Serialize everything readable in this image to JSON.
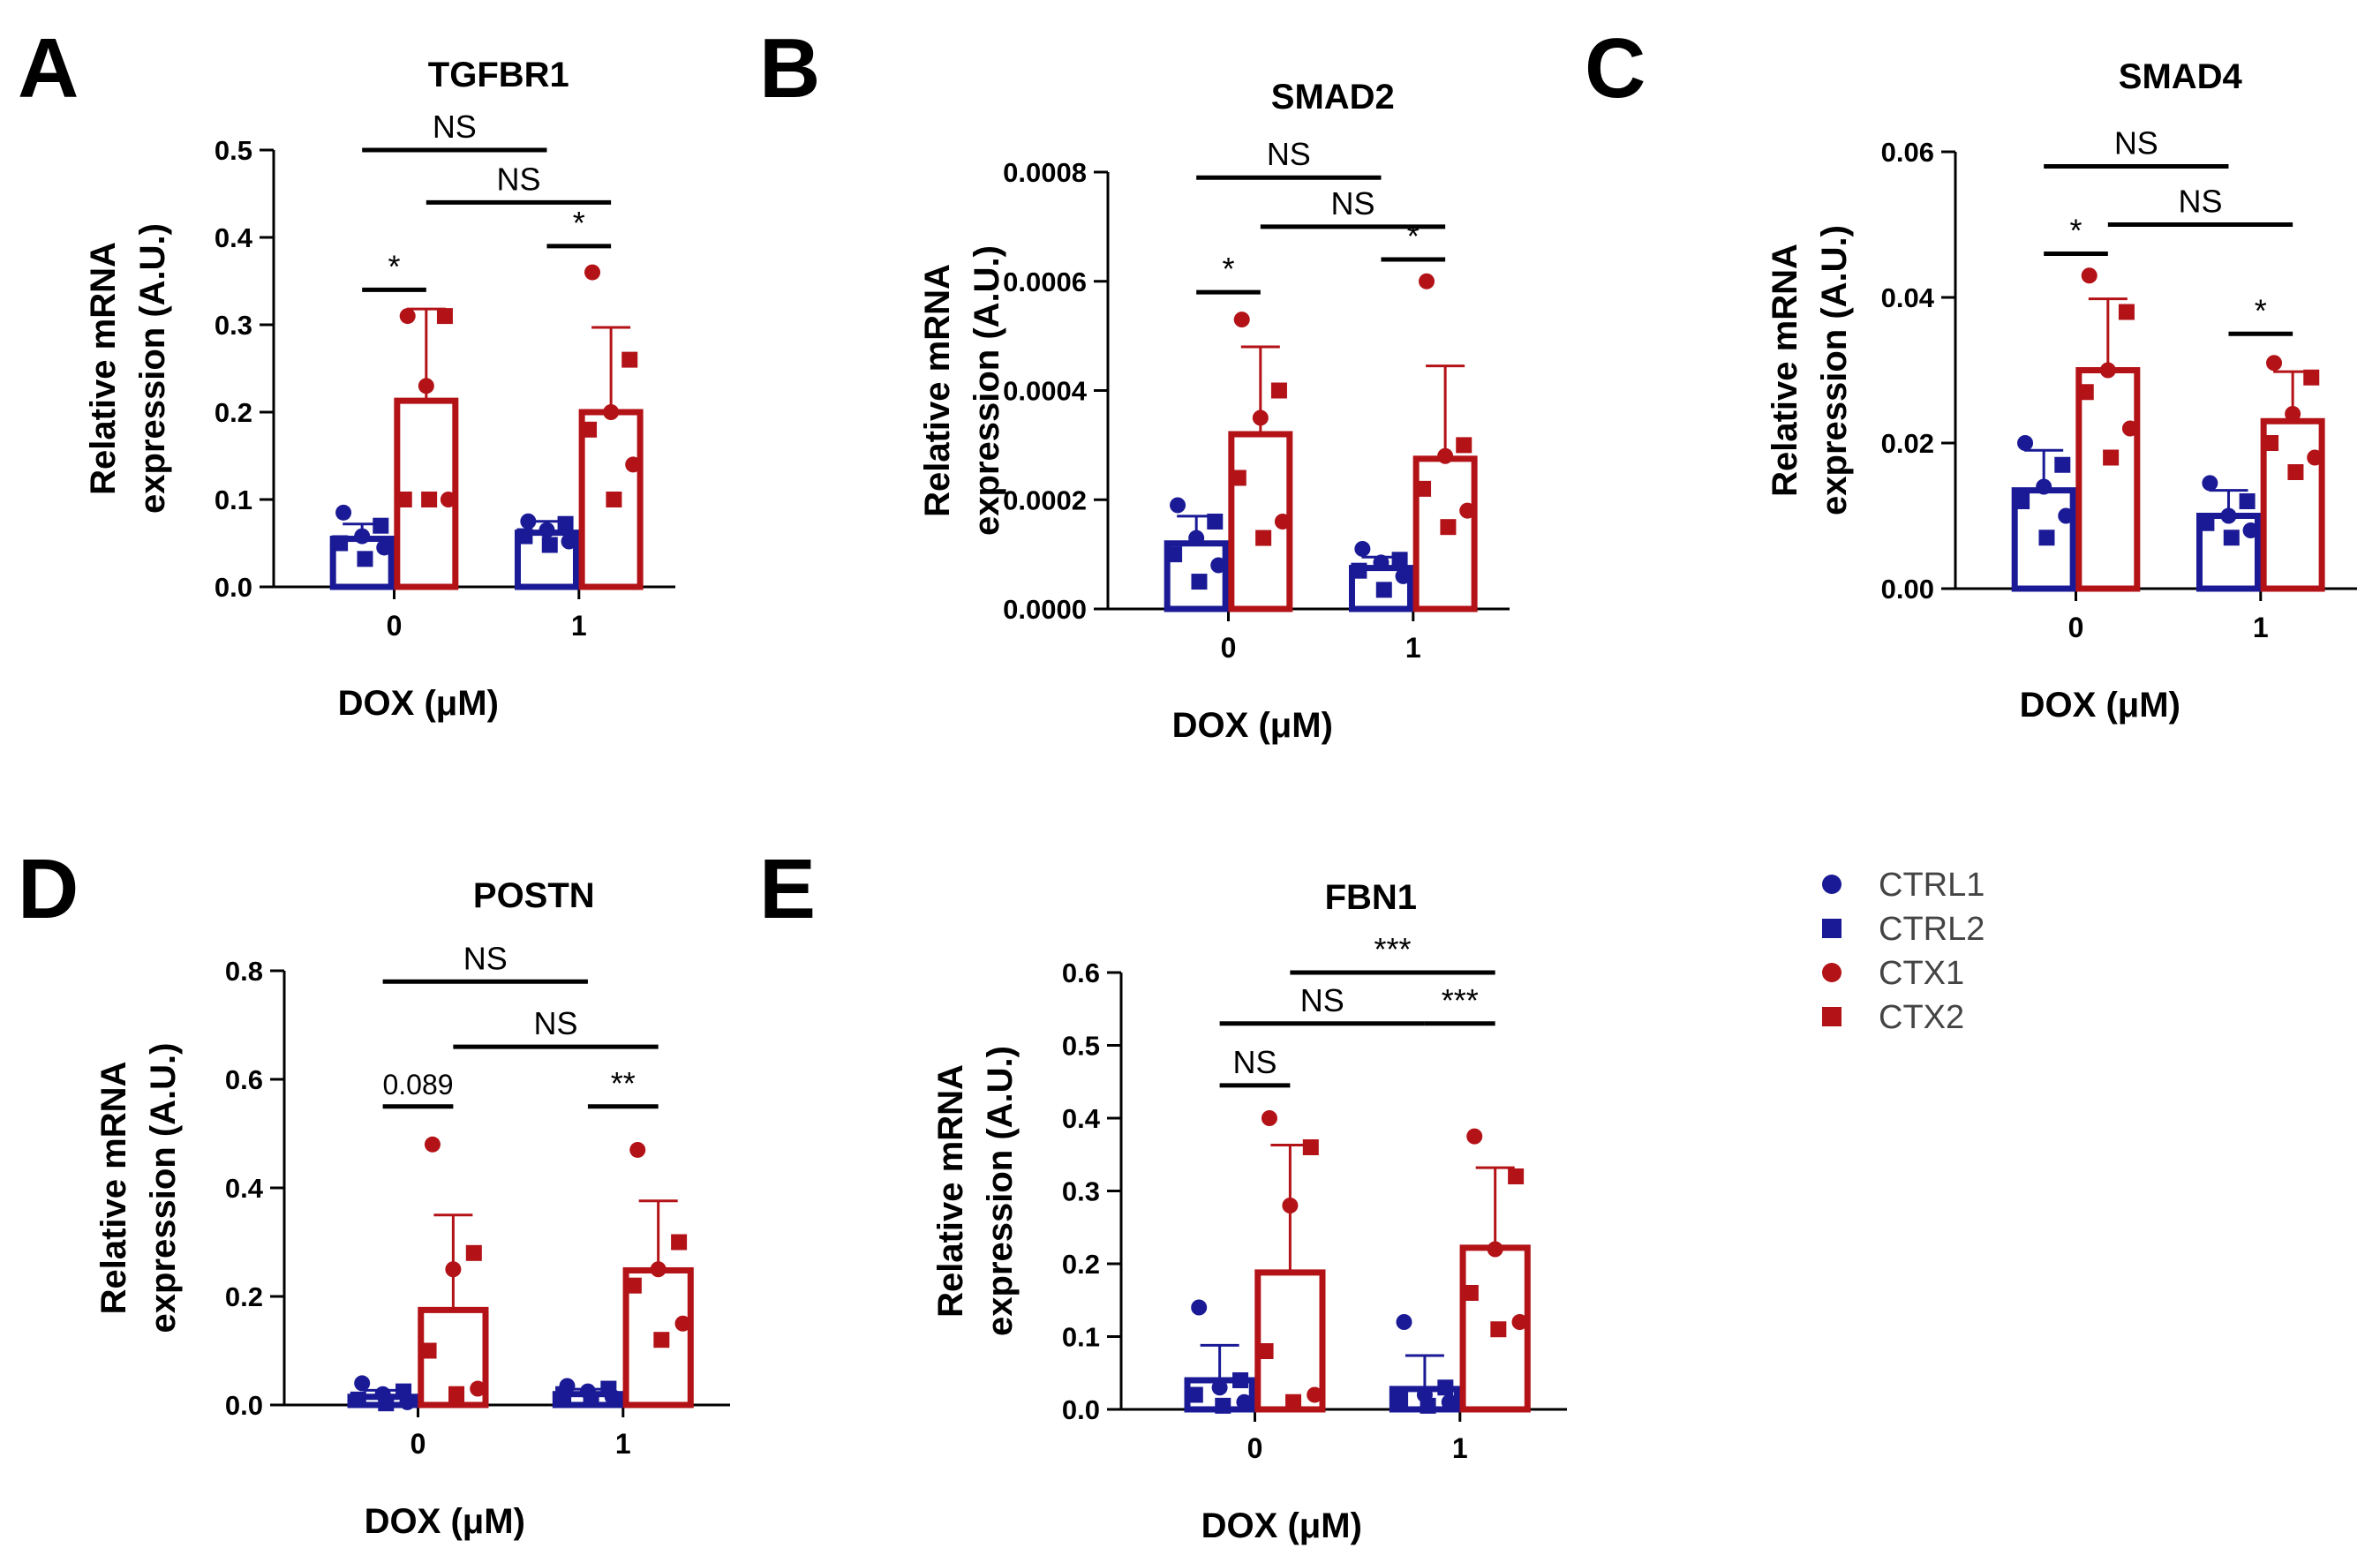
{
  "colors": {
    "ctrl": "#1a1a96",
    "ctx": "#b31217",
    "axis": "#000000"
  },
  "legend": {
    "items": [
      {
        "label": "CTRL1",
        "group": "ctrl",
        "marker": "circle"
      },
      {
        "label": "CTRL2",
        "group": "ctrl",
        "marker": "square"
      },
      {
        "label": "CTX1",
        "group": "ctx",
        "marker": "circle"
      },
      {
        "label": "CTX2",
        "group": "ctx",
        "marker": "square"
      }
    ]
  },
  "chart_data": [
    {
      "panel": "A",
      "type": "bar",
      "title": "TGFBR1",
      "ylabel": "Relative mRNA expression (A.U.)",
      "xlabel": "DOX (μM)",
      "categories": [
        "0",
        "1"
      ],
      "ylim": [
        0,
        0.5
      ],
      "yticks": [
        "0.0",
        "0.1",
        "0.2",
        "0.3",
        "0.4",
        "0.5"
      ],
      "series": [
        {
          "name": "CTRL",
          "group": "ctrl",
          "values": [
            0.055,
            0.062
          ],
          "sd": [
            0.017,
            0.013
          ],
          "points": [
            [
              0.085,
              0.07,
              0.058,
              0.05,
              0.045,
              0.032
            ],
            [
              0.075,
              0.072,
              0.065,
              0.058,
              0.052,
              0.048
            ]
          ]
        },
        {
          "name": "CTX",
          "group": "ctx",
          "values": [
            0.213,
            0.2
          ],
          "sd": [
            0.105,
            0.097
          ],
          "points": [
            [
              0.31,
              0.31,
              0.23,
              0.1,
              0.1,
              0.1
            ],
            [
              0.36,
              0.26,
              0.2,
              0.18,
              0.14,
              0.1
            ]
          ]
        }
      ],
      "annotations": [
        {
          "text": "*",
          "cat": 0,
          "y": 0.34
        },
        {
          "text": "*",
          "cat": 1,
          "y": 0.39
        },
        {
          "text": "NS",
          "from": "0-ctrl",
          "to": "1-ctrl",
          "y": 0.5
        },
        {
          "text": "NS",
          "from": "0-ctx",
          "to": "1-ctx",
          "y": 0.44
        }
      ]
    },
    {
      "panel": "B",
      "type": "bar",
      "title": "SMAD2",
      "ylabel": "Relative mRNA expression (A.U.)",
      "xlabel": "DOX (μM)",
      "categories": [
        "0",
        "1"
      ],
      "ylim": [
        0,
        0.0008
      ],
      "yticks": [
        "0.0000",
        "0.0002",
        "0.0004",
        "0.0006",
        "0.0008"
      ],
      "series": [
        {
          "name": "CTRL",
          "group": "ctrl",
          "values": [
            0.00012,
            7.5e-05
          ],
          "sd": [
            5e-05,
            2e-05
          ],
          "points": [
            [
              0.00019,
              0.00016,
              0.00013,
              0.0001,
              8e-05,
              5e-05
            ],
            [
              0.00011,
              9e-05,
              8.5e-05,
              7e-05,
              6e-05,
              3.5e-05
            ]
          ]
        },
        {
          "name": "CTX",
          "group": "ctx",
          "values": [
            0.00032,
            0.000275
          ],
          "sd": [
            0.00016,
            0.00017
          ],
          "points": [
            [
              0.00053,
              0.0004,
              0.00035,
              0.00024,
              0.00016,
              0.00013
            ],
            [
              0.0006,
              0.0003,
              0.00028,
              0.00022,
              0.00018,
              0.00015
            ]
          ]
        }
      ],
      "annotations": [
        {
          "text": "*",
          "cat": 0,
          "y": 0.00058
        },
        {
          "text": "*",
          "cat": 1,
          "y": 0.00064
        },
        {
          "text": "NS",
          "from": "0-ctrl",
          "to": "1-ctrl",
          "y": 0.00079
        },
        {
          "text": "NS",
          "from": "0-ctx",
          "to": "1-ctx",
          "y": 0.0007
        }
      ]
    },
    {
      "panel": "C",
      "type": "bar",
      "title": "SMAD4",
      "ylabel": "Relative mRNA expression (A.U.)",
      "xlabel": "DOX (μM)",
      "categories": [
        "0",
        "1"
      ],
      "ylim": [
        0,
        0.06
      ],
      "yticks": [
        "0.00",
        "0.02",
        "0.04",
        "0.06"
      ],
      "series": [
        {
          "name": "CTRL",
          "group": "ctrl",
          "values": [
            0.0135,
            0.01
          ],
          "sd": [
            0.0055,
            0.0035
          ],
          "points": [
            [
              0.02,
              0.017,
              0.014,
              0.012,
              0.01,
              0.007
            ],
            [
              0.0145,
              0.012,
              0.01,
              0.009,
              0.008,
              0.007
            ]
          ]
        },
        {
          "name": "CTX",
          "group": "ctx",
          "values": [
            0.03,
            0.023
          ],
          "sd": [
            0.0098,
            0.0068
          ],
          "points": [
            [
              0.043,
              0.038,
              0.03,
              0.027,
              0.022,
              0.018
            ],
            [
              0.031,
              0.029,
              0.024,
              0.02,
              0.018,
              0.016
            ]
          ]
        }
      ],
      "annotations": [
        {
          "text": "*",
          "cat": 0,
          "y": 0.046
        },
        {
          "text": "*",
          "cat": 1,
          "y": 0.035
        },
        {
          "text": "NS",
          "from": "0-ctrl",
          "to": "1-ctrl",
          "y": 0.058
        },
        {
          "text": "NS",
          "from": "0-ctx",
          "to": "1-ctx",
          "y": 0.05
        }
      ]
    },
    {
      "panel": "D",
      "type": "bar",
      "title": "POSTN",
      "ylabel": "Relative mRNA expression (A.U.)",
      "xlabel": "DOX (μM)",
      "categories": [
        "0",
        "1"
      ],
      "ylim": [
        0,
        0.8
      ],
      "yticks": [
        "0.0",
        "0.2",
        "0.4",
        "0.6",
        "0.8"
      ],
      "series": [
        {
          "name": "CTRL",
          "group": "ctrl",
          "values": [
            0.015,
            0.02
          ],
          "sd": [
            0.012,
            0.009
          ],
          "points": [
            [
              0.04,
              0.025,
              0.02,
              0.01,
              0.005,
              0.003
            ],
            [
              0.035,
              0.03,
              0.025,
              0.02,
              0.015,
              0.01
            ]
          ]
        },
        {
          "name": "CTX",
          "group": "ctx",
          "values": [
            0.175,
            0.248
          ],
          "sd": [
            0.175,
            0.128
          ],
          "points": [
            [
              0.48,
              0.28,
              0.25,
              0.1,
              0.03,
              0.02
            ],
            [
              0.47,
              0.3,
              0.25,
              0.22,
              0.15,
              0.12
            ]
          ]
        }
      ],
      "annotations": [
        {
          "text": "0.089",
          "cat": 0,
          "y": 0.55,
          "plain": true
        },
        {
          "text": "**",
          "cat": 1,
          "y": 0.55
        },
        {
          "text": "NS",
          "from": "0-ctrl",
          "to": "1-ctrl",
          "y": 0.78
        },
        {
          "text": "NS",
          "from": "0-ctx",
          "to": "1-ctx",
          "y": 0.66
        }
      ]
    },
    {
      "panel": "E",
      "type": "bar",
      "title": "FBN1",
      "ylabel": "Relative mRNA expression (A.U.)",
      "xlabel": "DOX (μM)",
      "categories": [
        "0",
        "1"
      ],
      "ylim": [
        0,
        0.6
      ],
      "yticks": [
        "0.0",
        "0.1",
        "0.2",
        "0.3",
        "0.4",
        "0.5",
        "0.6"
      ],
      "series": [
        {
          "name": "CTRL",
          "group": "ctrl",
          "values": [
            0.04,
            0.028
          ],
          "sd": [
            0.048,
            0.046
          ],
          "points": [
            [
              0.14,
              0.04,
              0.03,
              0.02,
              0.01,
              0.005
            ],
            [
              0.12,
              0.03,
              0.02,
              0.015,
              0.01,
              0.005
            ]
          ]
        },
        {
          "name": "CTX",
          "group": "ctx",
          "values": [
            0.188,
            0.222
          ],
          "sd": [
            0.175,
            0.11
          ],
          "points": [
            [
              0.4,
              0.36,
              0.28,
              0.08,
              0.02,
              0.01
            ],
            [
              0.375,
              0.32,
              0.22,
              0.16,
              0.12,
              0.11
            ]
          ]
        }
      ],
      "annotations": [
        {
          "text": "NS",
          "cat": 0,
          "y": 0.445
        },
        {
          "text": "***",
          "cat": 1,
          "y": 0.53
        },
        {
          "text": "NS",
          "from": "0-ctrl",
          "to": "1-ctrl",
          "y": 0.53
        },
        {
          "text": "***",
          "from": "0-ctx",
          "to": "1-ctx",
          "y": 0.6
        }
      ]
    }
  ]
}
